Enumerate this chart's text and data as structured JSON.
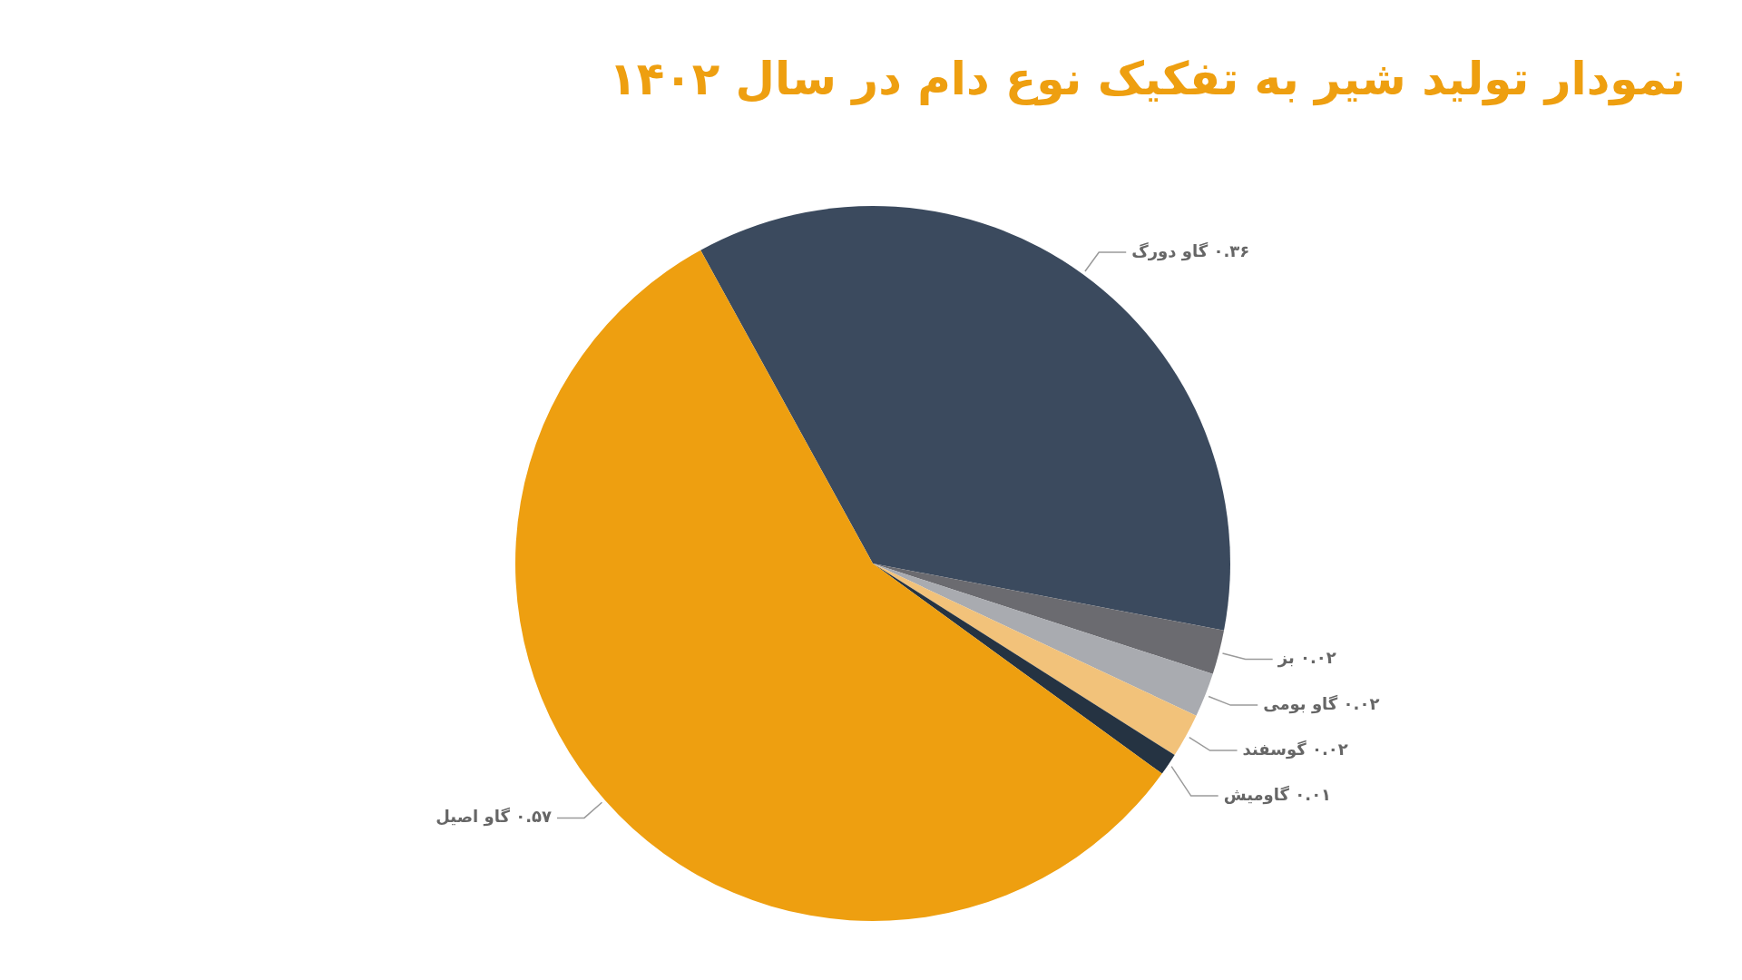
{
  "chart_data": {
    "type": "pie",
    "title": "نمودار تولید شیر به تفکیک نوع دام در سال ۱۴۰۲",
    "categories": [
      "گاو دورگ",
      "بز",
      "گاو بومی",
      "گوسفند",
      "گاومیش",
      "گاو اصیل"
    ],
    "values": [
      0.36,
      0.02,
      0.02,
      0.02,
      0.01,
      0.57
    ],
    "value_labels": [
      "۰.۳۶",
      "۰.۰۲",
      "۰.۰۲",
      "۰.۰۲",
      "۰.۰۱",
      "۰.۵۷"
    ],
    "colors": [
      "#3b4a5e",
      "#6b6b70",
      "#a9abb0",
      "#f2c27a",
      "#253342",
      "#ee9f10"
    ],
    "legend": false
  }
}
